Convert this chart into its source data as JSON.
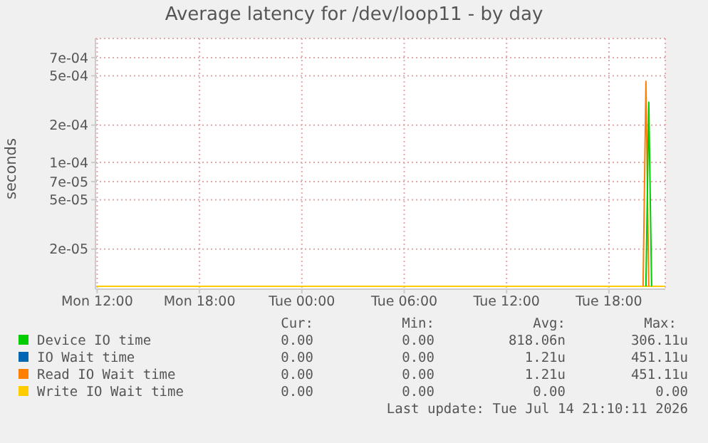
{
  "chart_data": {
    "type": "line",
    "title": "Average latency for /dev/loop11 - by day",
    "ylabel": "seconds",
    "series": [
      {
        "name": "Device IO time",
        "color": "#00cc00",
        "x": [
          "2026-07-14T20:10",
          "2026-07-14T20:20",
          "2026-07-14T20:30"
        ],
        "values": [
          1e-05,
          0.000306,
          1e-05
        ]
      },
      {
        "name": "IO Wait time",
        "color": "#0066b3"
      },
      {
        "name": "Read IO Wait time",
        "color": "#ff8000",
        "x": [
          "2026-07-14T20:00",
          "2026-07-14T20:10",
          "2026-07-14T20:20"
        ],
        "values": [
          1e-05,
          0.000451,
          1e-05
        ]
      },
      {
        "name": "Write IO Wait time",
        "color": "#ffcc00",
        "x": [
          "2026-07-13T11:54",
          "2026-07-14T21:18"
        ],
        "values": [
          1e-05,
          1e-05
        ]
      }
    ],
    "log": "y",
    "xlim": [
      "2026-07-13T11:54",
      "2026-07-14T21:18"
    ],
    "ylim": [
      9.5e-06,
      0.001
    ],
    "xticks": [
      {
        "value": "2026-07-13T12:00",
        "label": "Mon 12:00"
      },
      {
        "value": "2026-07-13T18:00",
        "label": "Mon 18:00"
      },
      {
        "value": "2026-07-14T00:00",
        "label": "Tue 00:00"
      },
      {
        "value": "2026-07-14T06:00",
        "label": "Tue 06:00"
      },
      {
        "value": "2026-07-14T12:00",
        "label": "Tue 12:00"
      },
      {
        "value": "2026-07-14T18:00",
        "label": "Tue 18:00"
      }
    ],
    "yticks": [
      {
        "value": 2e-05,
        "label": "2e-05"
      },
      {
        "value": 5e-05,
        "label": "5e-05"
      },
      {
        "value": 7e-05,
        "label": "7e-05"
      },
      {
        "value": 0.0001,
        "label": "1e-04"
      },
      {
        "value": 0.0002,
        "label": "2e-04"
      },
      {
        "value": 0.0005,
        "label": "5e-04"
      },
      {
        "value": 0.0007,
        "label": "7e-04"
      }
    ],
    "grid": true,
    "legend": "bottom",
    "annotations": [
      "Cur:",
      "Min:",
      "Avg:",
      "Max:",
      "0.00",
      "0.00",
      "818.06n",
      "306.11u",
      "0.00",
      "0.00",
      "1.21u",
      "451.11u",
      "0.00",
      "0.00",
      "1.21u",
      "451.11u",
      "0.00",
      "0.00",
      "0.00",
      "0.00",
      "Last update: Tue Jul 14 21:10:11 2026"
    ]
  }
}
